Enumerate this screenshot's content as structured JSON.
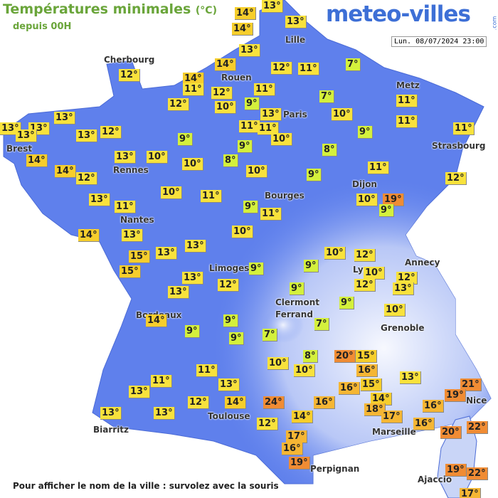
{
  "header": {
    "title": "Températures minimales",
    "unit": "(°C)",
    "subtitle": "depuis 00H",
    "logo": "meteo-villes",
    "logo_suffix": ".com",
    "timestamp": "Lun. 08/07/2024 23:00"
  },
  "cities": [
    "Lille",
    "Cherbourg",
    "Rouen",
    "Metz",
    "Paris",
    "Brest",
    "Strasbourg",
    "Rennes",
    "Dijon",
    "Bourges",
    "Nantes",
    "Annecy",
    "Limoges",
    "Lyon",
    "Clermont",
    "Ferrand",
    "Grenoble",
    "Bordeaux",
    "Nice",
    "Toulouse",
    "Biarritz",
    "Marseille",
    "Perpignan",
    "Ajaccio"
  ],
  "temperatures": [
    "13°",
    "14°",
    "13°",
    "14°",
    "13°",
    "7°",
    "14°",
    "12°",
    "12°",
    "11°",
    "14°",
    "11°",
    "12°",
    "11°",
    "11°",
    "7°",
    "12°",
    "9°",
    "10°",
    "13°",
    "10°",
    "13°",
    "11°",
    "13°",
    "13°",
    "13°",
    "13°",
    "12°",
    "11°",
    "11°",
    "9°",
    "11°",
    "9°",
    "10°",
    "9°",
    "8°",
    "14°",
    "13°",
    "10°",
    "8°",
    "10°",
    "14°",
    "11°",
    "10°",
    "9°",
    "12°",
    "12°",
    "13°",
    "10°",
    "11°",
    "10°",
    "19°",
    "11°",
    "9°",
    "9°",
    "11°",
    "14°",
    "13°",
    "10°",
    "13°",
    "13°",
    "10°",
    "12°",
    "15°",
    "9°",
    "9°",
    "15°",
    "10°",
    "12°",
    "13°",
    "12°",
    "13°",
    "12°",
    "13°",
    "9°",
    "9°",
    "10°",
    "14°",
    "9°",
    "7°",
    "9°",
    "7°",
    "9°",
    "20°",
    "15°",
    "8°",
    "10°",
    "16°",
    "10°",
    "11°",
    "11°",
    "13°",
    "21°",
    "13°",
    "15°",
    "13°",
    "16°",
    "19°",
    "14°",
    "12°",
    "14°",
    "24°",
    "16°",
    "18°",
    "16°",
    "13°",
    "13°",
    "14°",
    "17°",
    "16°",
    "12°",
    "20°",
    "22°",
    "17°",
    "16°",
    "19°",
    "19°",
    "22°",
    "17°"
  ],
  "footer": "Pour afficher le nom de la ville : survolez avec la souris"
}
